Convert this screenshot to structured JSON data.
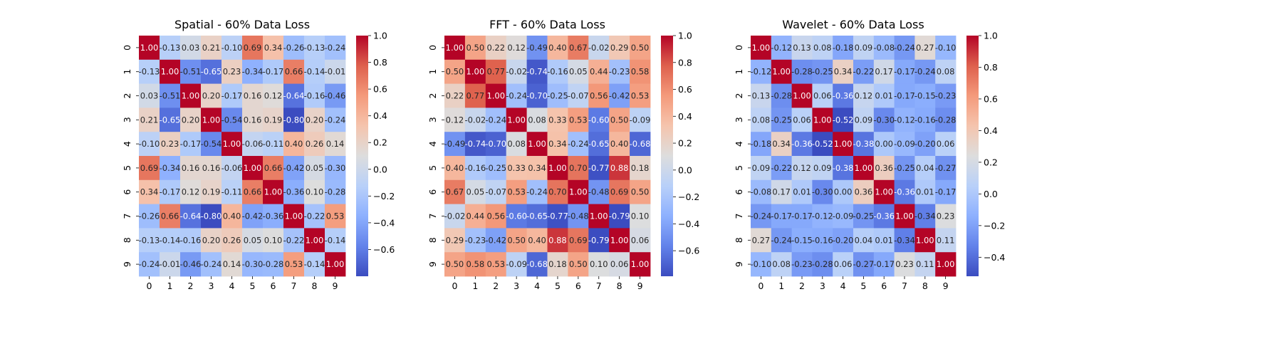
{
  "colors": {
    "low": "#3b4cc0",
    "mid": "#dddddd",
    "high": "#b40426"
  },
  "chart_data": [
    {
      "type": "heatmap",
      "title": "Spatial - 60% Data Loss",
      "xlabels": [
        "0",
        "1",
        "2",
        "3",
        "4",
        "5",
        "6",
        "7",
        "8",
        "9"
      ],
      "ylabels": [
        "0",
        "1",
        "2",
        "3",
        "4",
        "5",
        "6",
        "7",
        "8",
        "9"
      ],
      "fmt": "2dp",
      "values": [
        [
          1.0,
          -0.13,
          0.03,
          0.21,
          -0.1,
          0.69,
          0.34,
          -0.26,
          -0.13,
          -0.24
        ],
        [
          -0.13,
          1.0,
          -0.51,
          -0.65,
          0.23,
          -0.34,
          -0.17,
          0.66,
          -0.14,
          -0.01
        ],
        [
          0.03,
          -0.51,
          1.0,
          0.2,
          -0.17,
          0.16,
          0.12,
          -0.64,
          -0.16,
          -0.46
        ],
        [
          0.21,
          -0.65,
          0.2,
          1.0,
          -0.54,
          0.16,
          0.19,
          -0.8,
          0.2,
          -0.24
        ],
        [
          -0.1,
          0.23,
          -0.17,
          -0.54,
          1.0,
          -0.06,
          -0.11,
          0.4,
          0.26,
          0.14
        ],
        [
          0.69,
          -0.34,
          0.16,
          0.16,
          -0.06,
          1.0,
          0.66,
          -0.42,
          0.05,
          -0.3
        ],
        [
          0.34,
          -0.17,
          0.12,
          0.19,
          -0.11,
          0.66,
          1.0,
          -0.36,
          0.1,
          -0.28
        ],
        [
          -0.26,
          0.66,
          -0.64,
          -0.8,
          0.4,
          -0.42,
          -0.36,
          1.0,
          -0.22,
          0.53
        ],
        [
          -0.13,
          -0.14,
          -0.16,
          0.2,
          0.26,
          0.05,
          0.1,
          -0.22,
          1.0,
          -0.14
        ],
        [
          -0.24,
          -0.01,
          -0.46,
          -0.24,
          0.14,
          -0.3,
          -0.28,
          0.53,
          -0.14,
          1.0
        ]
      ],
      "colorbar": {
        "vmin": -0.8,
        "vmax": 1.0,
        "ticks": [
          "1.0",
          "0.8",
          "0.6",
          "0.4",
          "0.2",
          "0.0",
          "−0.2",
          "−0.4",
          "−0.6"
        ],
        "tick_values": [
          1.0,
          0.8,
          0.6,
          0.4,
          0.2,
          0.0,
          -0.2,
          -0.4,
          -0.6
        ]
      }
    },
    {
      "type": "heatmap",
      "title": "FFT - 60% Data Loss",
      "xlabels": [
        "0",
        "1",
        "2",
        "3",
        "4",
        "5",
        "6",
        "7",
        "8",
        "9"
      ],
      "ylabels": [
        "0",
        "1",
        "2",
        "3",
        "4",
        "5",
        "6",
        "7",
        "8",
        "9"
      ],
      "fmt": "2dp",
      "values": [
        [
          1.0,
          0.5,
          0.22,
          0.12,
          -0.49,
          0.4,
          0.67,
          -0.02,
          0.29,
          0.5
        ],
        [
          0.5,
          1.0,
          0.77,
          -0.02,
          -0.74,
          -0.16,
          0.05,
          0.44,
          -0.23,
          0.58
        ],
        [
          0.22,
          0.77,
          1.0,
          -0.24,
          -0.7,
          -0.25,
          -0.07,
          0.56,
          -0.42,
          0.53
        ],
        [
          0.12,
          -0.02,
          -0.24,
          1.0,
          0.08,
          0.33,
          0.53,
          -0.6,
          0.5,
          -0.09
        ],
        [
          -0.49,
          -0.74,
          -0.7,
          0.08,
          1.0,
          0.34,
          -0.24,
          -0.65,
          0.4,
          -0.68
        ],
        [
          0.4,
          -0.16,
          -0.25,
          0.33,
          0.34,
          1.0,
          0.7,
          -0.77,
          0.88,
          0.18
        ],
        [
          0.67,
          0.05,
          -0.07,
          0.53,
          -0.24,
          0.7,
          1.0,
          -0.48,
          0.69,
          0.5
        ],
        [
          -0.02,
          0.44,
          0.56,
          -0.6,
          -0.65,
          -0.77,
          -0.48,
          1.0,
          -0.79,
          0.1
        ],
        [
          0.29,
          -0.23,
          -0.42,
          0.5,
          0.4,
          0.88,
          0.69,
          -0.79,
          1.0,
          0.06
        ],
        [
          0.5,
          0.58,
          0.53,
          -0.09,
          -0.68,
          0.18,
          0.5,
          0.1,
          0.06,
          1.0
        ]
      ],
      "colorbar": {
        "vmin": -0.79,
        "vmax": 1.0,
        "ticks": [
          "1.0",
          "0.8",
          "0.6",
          "0.4",
          "0.2",
          "0.0",
          "−0.2",
          "−0.4",
          "−0.6"
        ],
        "tick_values": [
          1.0,
          0.8,
          0.6,
          0.4,
          0.2,
          0.0,
          -0.2,
          -0.4,
          -0.6
        ]
      }
    },
    {
      "type": "heatmap",
      "title": "Wavelet - 60% Data Loss",
      "xlabels": [
        "0",
        "1",
        "2",
        "3",
        "4",
        "5",
        "6",
        "7",
        "8",
        "9"
      ],
      "ylabels": [
        "0",
        "1",
        "2",
        "3",
        "4",
        "5",
        "6",
        "7",
        "8",
        "9"
      ],
      "fmt": "2dp",
      "values": [
        [
          1.0,
          -0.12,
          0.13,
          0.08,
          -0.18,
          0.09,
          -0.08,
          -0.24,
          0.27,
          -0.1
        ],
        [
          -0.12,
          1.0,
          -0.28,
          -0.25,
          0.34,
          -0.22,
          0.17,
          -0.17,
          -0.24,
          0.08
        ],
        [
          0.13,
          -0.28,
          1.0,
          0.06,
          -0.36,
          0.12,
          0.01,
          -0.17,
          -0.15,
          -0.23
        ],
        [
          0.08,
          -0.25,
          0.06,
          1.0,
          -0.52,
          0.09,
          -0.3,
          -0.12,
          -0.16,
          -0.28
        ],
        [
          -0.18,
          0.34,
          -0.36,
          -0.52,
          1.0,
          -0.38,
          0.0,
          -0.09,
          -0.2,
          0.06
        ],
        [
          0.09,
          -0.22,
          0.12,
          0.09,
          -0.38,
          1.0,
          0.36,
          -0.25,
          0.04,
          -0.27
        ],
        [
          -0.08,
          0.17,
          0.01,
          -0.3,
          0.0,
          0.36,
          1.0,
          -0.36,
          0.01,
          -0.17
        ],
        [
          -0.24,
          -0.17,
          -0.17,
          -0.12,
          -0.09,
          -0.25,
          -0.36,
          1.0,
          -0.34,
          0.23
        ],
        [
          0.27,
          -0.24,
          -0.15,
          -0.16,
          -0.2,
          0.04,
          0.01,
          -0.34,
          1.0,
          0.11
        ],
        [
          -0.1,
          0.08,
          -0.23,
          -0.28,
          0.06,
          -0.27,
          -0.17,
          0.23,
          0.11,
          1.0
        ]
      ],
      "colorbar": {
        "vmin": -0.52,
        "vmax": 1.0,
        "ticks": [
          "1.0",
          "0.8",
          "0.6",
          "0.4",
          "0.2",
          "0.0",
          "−0.2",
          "−0.4"
        ],
        "tick_values": [
          1.0,
          0.8,
          0.6,
          0.4,
          0.2,
          0.0,
          -0.2,
          -0.4
        ]
      }
    }
  ]
}
